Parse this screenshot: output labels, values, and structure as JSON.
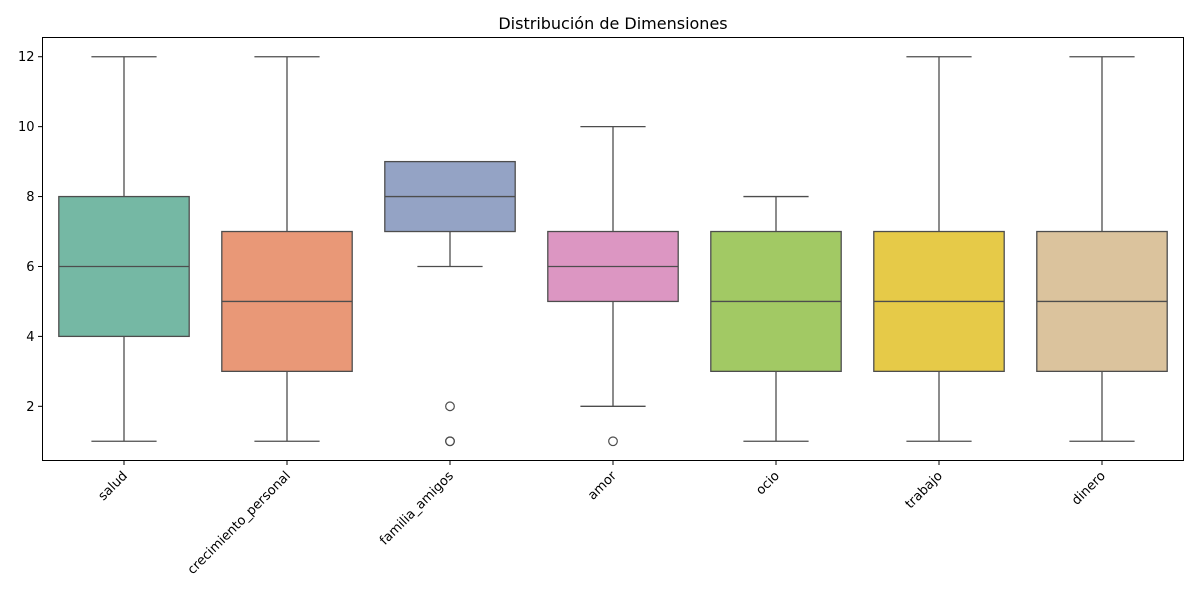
{
  "chart_data": {
    "type": "boxplot",
    "title": "Distribución de Dimensiones",
    "xlabel": "",
    "ylabel": "",
    "ylim": [
      0.45,
      12.55
    ],
    "yticks": [
      2,
      4,
      6,
      8,
      10,
      12
    ],
    "grid": false,
    "legend": "none",
    "categories": [
      "salud",
      "crecimiento_personal",
      "familia_amigos",
      "amor",
      "ocio",
      "trabajo",
      "dinero"
    ],
    "boxes": [
      {
        "category": "salud",
        "whisker_low": 1,
        "q1": 4,
        "median": 6,
        "q3": 8,
        "whisker_high": 12,
        "outliers": [],
        "color": "#75b8a4"
      },
      {
        "category": "crecimiento_personal",
        "whisker_low": 1,
        "q1": 3,
        "median": 5,
        "q3": 7,
        "whisker_high": 12,
        "outliers": [],
        "color": "#e99877"
      },
      {
        "category": "familia_amigos",
        "whisker_low": 6,
        "q1": 7,
        "median": 8,
        "q3": 9,
        "whisker_high": 9,
        "outliers": [
          2,
          1,
          1
        ],
        "color": "#94a3c5"
      },
      {
        "category": "amor",
        "whisker_low": 2,
        "q1": 5,
        "median": 6,
        "q3": 7,
        "whisker_high": 10,
        "outliers": [
          1
        ],
        "color": "#dc96c2"
      },
      {
        "category": "ocio",
        "whisker_low": 1,
        "q1": 3,
        "median": 5,
        "q3": 7,
        "whisker_high": 8,
        "outliers": [],
        "color": "#a2c964"
      },
      {
        "category": "trabajo",
        "whisker_low": 1,
        "q1": 3,
        "median": 5,
        "q3": 7,
        "whisker_high": 12,
        "outliers": [],
        "color": "#e6ca48"
      },
      {
        "category": "dinero",
        "whisker_low": 1,
        "q1": 3,
        "median": 5,
        "q3": 7,
        "whisker_high": 12,
        "outliers": [],
        "color": "#dbc39d"
      }
    ]
  }
}
